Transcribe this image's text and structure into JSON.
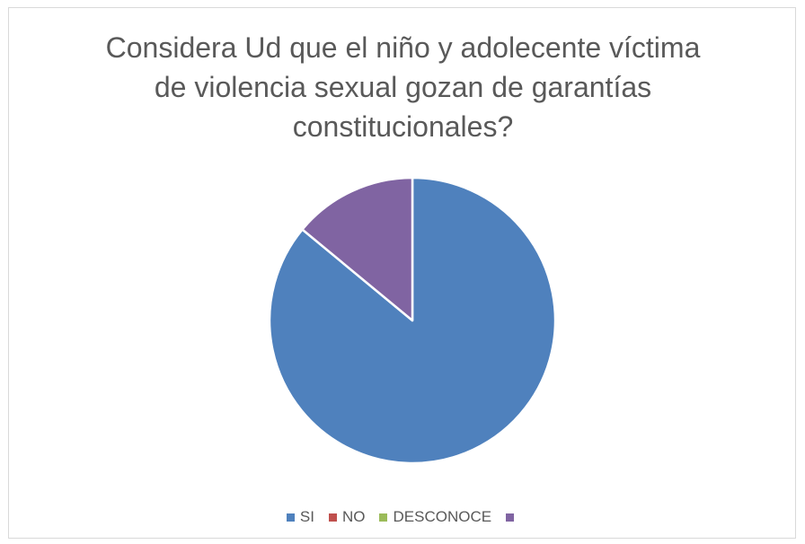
{
  "chart_data": {
    "type": "pie",
    "title_lines": [
      "Considera Ud que el niño y adolecente víctima",
      "de violencia sexual gozan de garantías",
      "constitucionales?"
    ],
    "categories": [
      "SI",
      "NO",
      "DESCONOCE",
      ""
    ],
    "values": [
      86,
      0,
      0,
      14
    ],
    "colors": [
      "#4f81bd",
      "#c0504d",
      "#9bbb59",
      "#8064a2"
    ],
    "legend_position": "bottom"
  }
}
